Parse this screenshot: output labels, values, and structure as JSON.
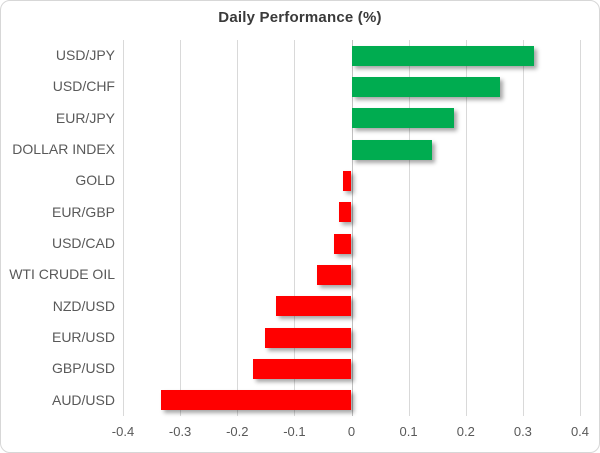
{
  "chart_data": {
    "type": "bar",
    "orientation": "horizontal",
    "title": "Daily Performance (%)",
    "categories": [
      "USD/JPY",
      "USD/CHF",
      "EUR/JPY",
      "DOLLAR INDEX",
      "GOLD",
      "EUR/GBP",
      "USD/CAD",
      "WTI CRUDE OIL",
      "NZD/USD",
      "EUR/USD",
      "GBP/USD",
      "AUD/USD"
    ],
    "values": [
      0.32,
      0.26,
      0.18,
      0.14,
      -0.015,
      -0.022,
      -0.031,
      -0.061,
      -0.132,
      -0.152,
      -0.172,
      -0.333
    ],
    "xlim": [
      -0.4,
      0.4
    ],
    "x_ticks": [
      -0.4,
      -0.3,
      -0.2,
      -0.1,
      0,
      0.1,
      0.2,
      0.3,
      0.4
    ],
    "x_tick_labels": [
      "-0.4",
      "-0.3",
      "-0.2",
      "-0.1",
      "0",
      "0.1",
      "0.2",
      "0.3",
      "0.4"
    ],
    "positive_color": "#00ac50",
    "negative_color": "#ff0000",
    "gridline_color": "#d9d9d9",
    "grid": true,
    "legend_position": "none"
  }
}
